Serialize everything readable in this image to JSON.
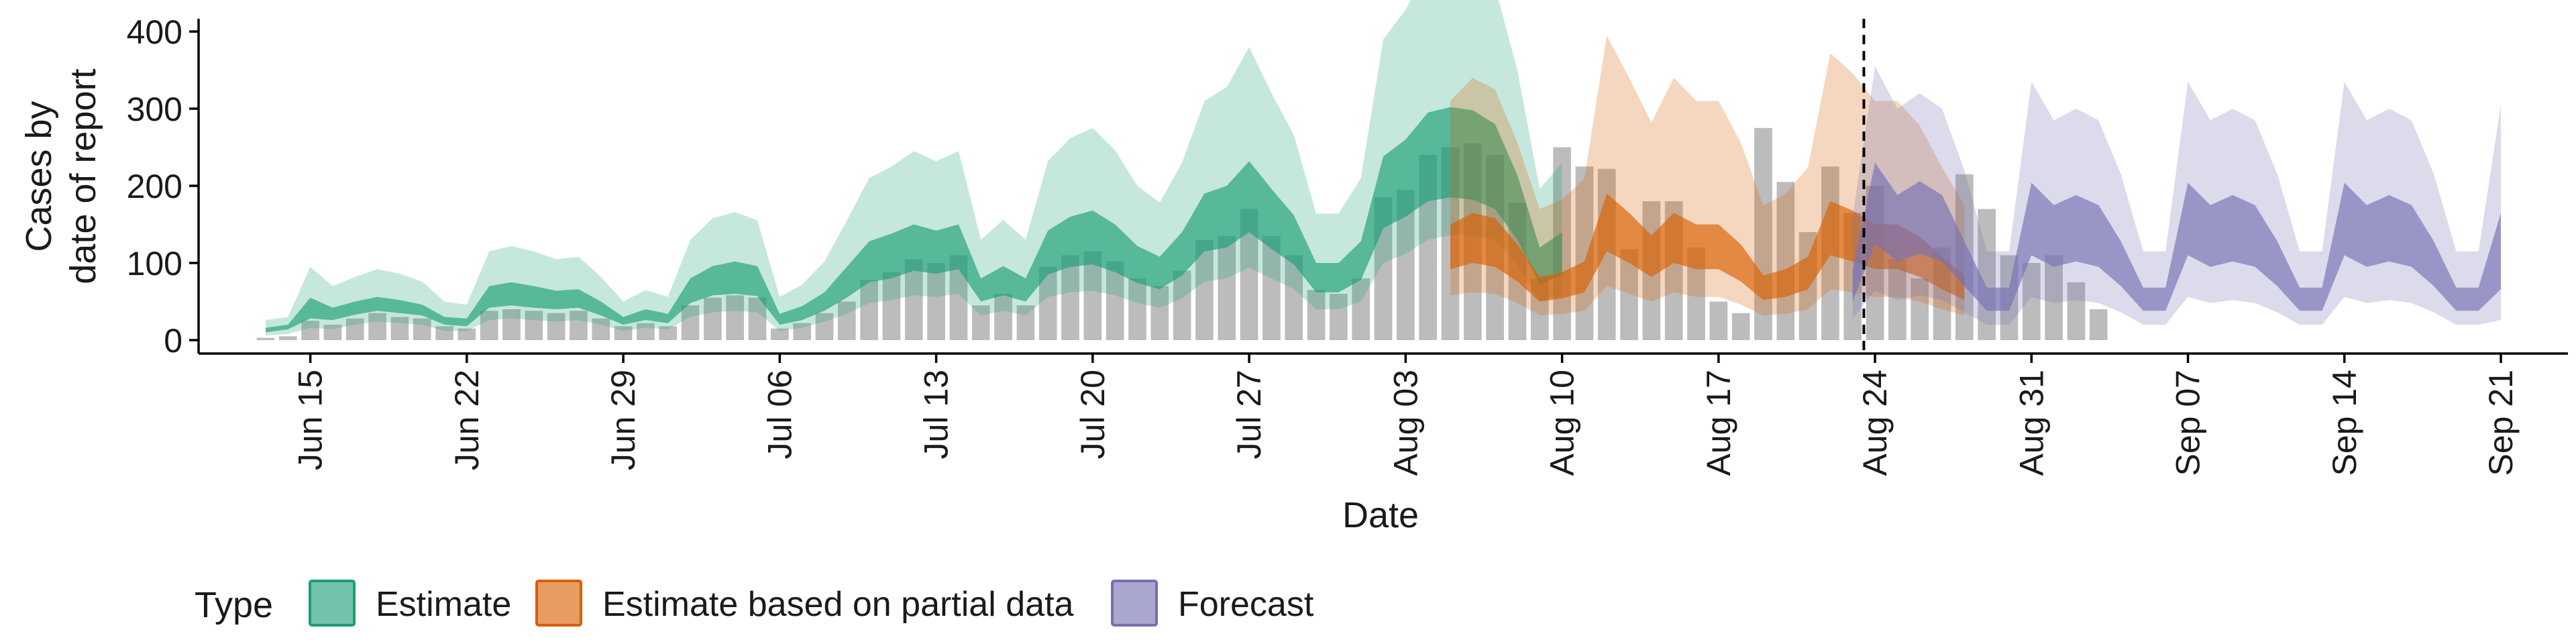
{
  "chart_data": {
    "type": "area",
    "xlabel": "Date",
    "ylabel": [
      "Cases by",
      "date of report"
    ],
    "ylim": [
      0,
      420
    ],
    "yticks": [
      0,
      100,
      200,
      300,
      400
    ],
    "x_range": [
      "2020-06-10",
      "2020-09-24"
    ],
    "x_ticks": [
      {
        "date": "2020-06-15",
        "label": "Jun 15"
      },
      {
        "date": "2020-06-22",
        "label": "Jun 22"
      },
      {
        "date": "2020-06-29",
        "label": "Jun 29"
      },
      {
        "date": "2020-07-06",
        "label": "Jul 06"
      },
      {
        "date": "2020-07-13",
        "label": "Jul 13"
      },
      {
        "date": "2020-07-20",
        "label": "Jul 20"
      },
      {
        "date": "2020-07-27",
        "label": "Jul 27"
      },
      {
        "date": "2020-08-03",
        "label": "Aug 03"
      },
      {
        "date": "2020-08-10",
        "label": "Aug 10"
      },
      {
        "date": "2020-08-17",
        "label": "Aug 17"
      },
      {
        "date": "2020-08-24",
        "label": "Aug 24"
      },
      {
        "date": "2020-08-31",
        "label": "Aug 31"
      },
      {
        "date": "2020-09-07",
        "label": "Sep 07"
      },
      {
        "date": "2020-09-14",
        "label": "Sep 14"
      },
      {
        "date": "2020-09-21",
        "label": "Sep 21"
      }
    ],
    "forecast_date": "2020-08-23",
    "legend": {
      "title": "Type",
      "position": "bottom",
      "items": [
        {
          "label": "Estimate",
          "color": "#1b9e77"
        },
        {
          "label": "Estimate based on partial data",
          "color": "#d95f02"
        },
        {
          "label": "Forecast",
          "color": "#7570b3"
        }
      ]
    },
    "bar_color": "#a6a6a6",
    "reported_cases": {
      "start_date": "2020-06-13",
      "values": [
        3,
        5,
        25,
        20,
        28,
        35,
        30,
        28,
        18,
        15,
        38,
        40,
        38,
        35,
        38,
        28,
        18,
        22,
        18,
        45,
        55,
        58,
        55,
        15,
        22,
        35,
        50,
        78,
        88,
        105,
        100,
        110,
        45,
        60,
        45,
        95,
        110,
        115,
        102,
        80,
        70,
        90,
        130,
        135,
        170,
        135,
        110,
        65,
        60,
        80,
        185,
        195,
        240,
        250,
        255,
        240,
        178,
        80,
        250,
        225,
        222,
        118,
        180,
        180,
        120,
        50,
        35,
        275,
        205,
        140,
        225,
        165,
        200,
        105,
        80,
        120,
        215,
        170,
        110,
        100,
        110,
        75,
        40
      ]
    },
    "series": [
      {
        "name": "Estimate",
        "color": "#1b9e77",
        "start_date": "2020-06-13",
        "outer_lower": [
          6,
          8,
          16,
          14,
          20,
          24,
          22,
          20,
          12,
          12,
          26,
          28,
          26,
          24,
          26,
          20,
          12,
          16,
          14,
          30,
          36,
          38,
          36,
          12,
          16,
          24,
          34,
          48,
          52,
          58,
          56,
          60,
          32,
          38,
          32,
          56,
          62,
          64,
          58,
          48,
          42,
          54,
          76,
          80,
          94,
          80,
          66,
          40,
          40,
          50,
          100,
          112,
          130,
          136,
          136,
          130,
          98,
          50,
          60
        ],
        "inner_lower": [
          10,
          14,
          28,
          26,
          33,
          38,
          35,
          32,
          20,
          18,
          42,
          45,
          42,
          40,
          42,
          32,
          20,
          26,
          22,
          48,
          58,
          60,
          57,
          20,
          26,
          38,
          55,
          75,
          80,
          90,
          86,
          92,
          50,
          58,
          50,
          85,
          95,
          98,
          88,
          74,
          66,
          84,
          115,
          120,
          140,
          118,
          98,
          62,
          62,
          78,
          145,
          160,
          180,
          185,
          182,
          170,
          130,
          72,
          85
        ],
        "inner_upper": [
          16,
          20,
          55,
          42,
          50,
          56,
          52,
          46,
          30,
          28,
          70,
          75,
          70,
          64,
          66,
          50,
          30,
          40,
          34,
          80,
          96,
          102,
          96,
          34,
          44,
          62,
          95,
          128,
          138,
          150,
          142,
          150,
          80,
          96,
          80,
          142,
          160,
          168,
          150,
          122,
          108,
          140,
          190,
          200,
          232,
          196,
          162,
          100,
          100,
          128,
          238,
          260,
          295,
          302,
          298,
          280,
          214,
          120,
          140
        ],
        "outer_upper": [
          26,
          30,
          95,
          70,
          82,
          92,
          86,
          76,
          50,
          46,
          115,
          122,
          115,
          105,
          108,
          82,
          50,
          65,
          56,
          130,
          158,
          166,
          155,
          56,
          72,
          102,
          155,
          210,
          225,
          245,
          232,
          245,
          130,
          156,
          130,
          232,
          262,
          275,
          246,
          200,
          178,
          230,
          310,
          328,
          380,
          320,
          266,
          164,
          164,
          210,
          390,
          428,
          485,
          495,
          488,
          458,
          350,
          196,
          230
        ]
      },
      {
        "name": "Estimate based on partial data",
        "color": "#d95f02",
        "start_date": "2020-08-05",
        "outer_lower": [
          58,
          62,
          60,
          48,
          32,
          34,
          38,
          70,
          60,
          50,
          62,
          56,
          56,
          46,
          32,
          34,
          40,
          66,
          62,
          56,
          56,
          50,
          40,
          32
        ],
        "inner_lower": [
          92,
          100,
          95,
          76,
          50,
          54,
          62,
          115,
          100,
          82,
          100,
          92,
          92,
          76,
          52,
          56,
          66,
          110,
          102,
          92,
          92,
          82,
          66,
          52
        ],
        "inner_upper": [
          150,
          165,
          158,
          124,
          82,
          88,
          102,
          190,
          165,
          136,
          165,
          150,
          150,
          124,
          84,
          92,
          108,
          180,
          168,
          150,
          150,
          134,
          108,
          84
        ],
        "outer_upper": [
          310,
          340,
          325,
          256,
          170,
          182,
          210,
          395,
          340,
          282,
          340,
          310,
          310,
          256,
          174,
          190,
          224,
          372,
          346,
          310,
          310,
          278,
          224,
          175
        ]
      },
      {
        "name": "Forecast",
        "color": "#7570b3",
        "start_date": "2020-08-23",
        "outer_lower": [
          28,
          64,
          52,
          58,
          52,
          36,
          20,
          20,
          56,
          48,
          52,
          48,
          36,
          20,
          20,
          56,
          48,
          52,
          48,
          36,
          20,
          20,
          56,
          48,
          52,
          48,
          36,
          20,
          20,
          26
        ],
        "inner_lower": [
          50,
          125,
          102,
          112,
          102,
          70,
          38,
          38,
          110,
          95,
          102,
          95,
          70,
          38,
          38,
          110,
          95,
          102,
          95,
          70,
          38,
          38,
          110,
          95,
          102,
          95,
          70,
          38,
          38,
          66
        ],
        "inner_upper": [
          90,
          230,
          188,
          206,
          188,
          128,
          68,
          68,
          204,
          175,
          188,
          175,
          128,
          68,
          68,
          204,
          175,
          188,
          175,
          128,
          68,
          68,
          204,
          175,
          188,
          175,
          128,
          68,
          68,
          165
        ],
        "outer_upper": [
          160,
          355,
          300,
          320,
          300,
          220,
          115,
          115,
          335,
          285,
          300,
          285,
          215,
          115,
          115,
          335,
          285,
          300,
          285,
          215,
          115,
          115,
          335,
          285,
          300,
          285,
          215,
          115,
          115,
          305
        ]
      }
    ]
  }
}
